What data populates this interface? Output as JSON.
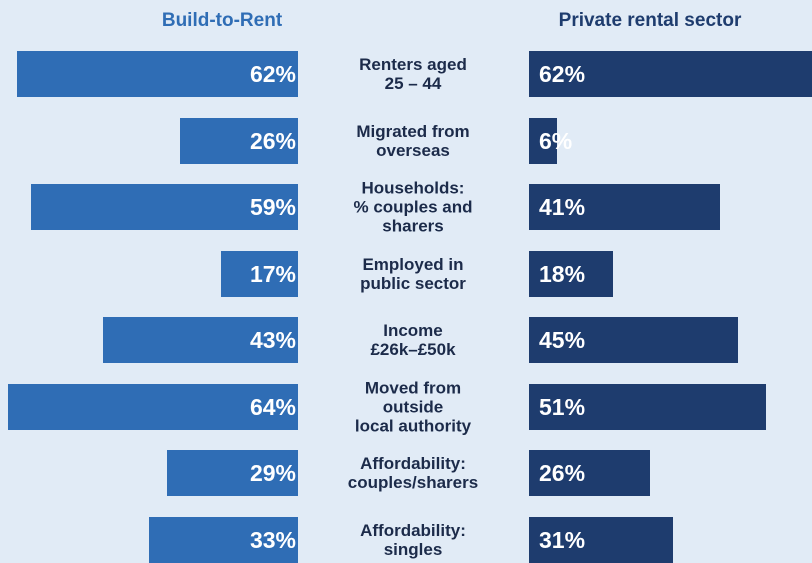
{
  "chart_data": {
    "type": "butterfly-bar",
    "categories": [
      "Renters aged\n25 – 44",
      "Migrated from\noverseas",
      "Households:\n% couples and\nsharers",
      "Employed in\npublic sector",
      "Income\n£26k–£50k",
      "Moved from\noutside\nlocal authority",
      "Affordability:\ncouples/sharers",
      "Affordability:\nsingles"
    ],
    "series": [
      {
        "name": "Build-to-Rent",
        "color": "#2f6db5",
        "values": [
          62,
          26,
          59,
          17,
          43,
          64,
          29,
          33
        ],
        "value_labels": [
          "62%",
          "26%",
          "59%",
          "17%",
          "43%",
          "64%",
          "29%",
          "33%"
        ]
      },
      {
        "name": "Private rental sector",
        "color": "#1e3c6e",
        "values": [
          62,
          6,
          41,
          18,
          45,
          51,
          26,
          31
        ],
        "value_labels": [
          "62%",
          "6%",
          "41%",
          "18%",
          "45%",
          "51%",
          "26%",
          "31%"
        ]
      }
    ]
  }
}
